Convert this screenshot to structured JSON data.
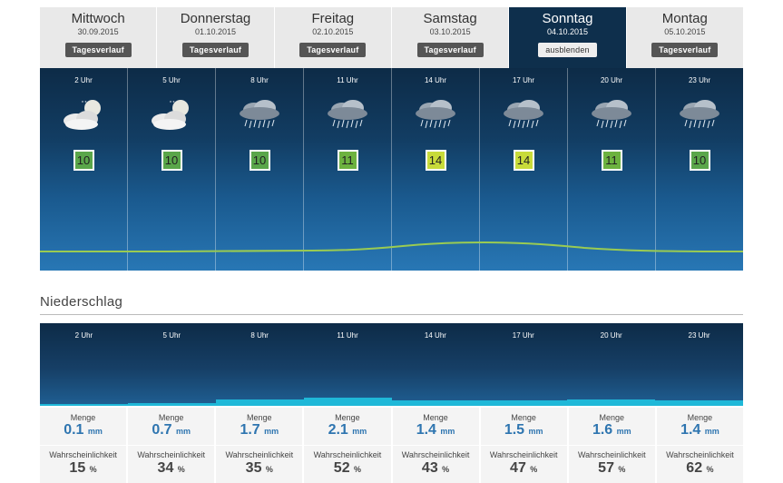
{
  "days": [
    {
      "name": "Mittwoch",
      "date": "30.09.2015",
      "button": "Tagesverlauf",
      "active": false
    },
    {
      "name": "Donnerstag",
      "date": "01.10.2015",
      "button": "Tagesverlauf",
      "active": false
    },
    {
      "name": "Freitag",
      "date": "02.10.2015",
      "button": "Tagesverlauf",
      "active": false
    },
    {
      "name": "Samstag",
      "date": "03.10.2015",
      "button": "Tagesverlauf",
      "active": false
    },
    {
      "name": "Sonntag",
      "date": "04.10.2015",
      "button": "ausblenden",
      "active": true
    },
    {
      "name": "Montag",
      "date": "05.10.2015",
      "button": "Tagesverlauf",
      "active": false
    }
  ],
  "forecast": [
    {
      "time": "2 Uhr",
      "icon": "night-cloud-moon-icon",
      "temp": "10",
      "temp_color": "#5aa64a"
    },
    {
      "time": "5 Uhr",
      "icon": "night-cloud-moon-icon",
      "temp": "10",
      "temp_color": "#5aa64a"
    },
    {
      "time": "8 Uhr",
      "icon": "rain-cloud-icon",
      "temp": "10",
      "temp_color": "#5aa64a"
    },
    {
      "time": "11 Uhr",
      "icon": "rain-cloud-icon",
      "temp": "11",
      "temp_color": "#6db23f"
    },
    {
      "time": "14 Uhr",
      "icon": "rain-cloud-icon",
      "temp": "14",
      "temp_color": "#c8db3a"
    },
    {
      "time": "17 Uhr",
      "icon": "rain-cloud-icon",
      "temp": "14",
      "temp_color": "#c8db3a"
    },
    {
      "time": "20 Uhr",
      "icon": "rain-cloud-icon",
      "temp": "11",
      "temp_color": "#6db23f"
    },
    {
      "time": "23 Uhr",
      "icon": "rain-cloud-icon",
      "temp": "10",
      "temp_color": "#5aa64a"
    }
  ],
  "niederschlag": {
    "title": "Niederschlag",
    "menge_label": "Menge",
    "wk_label": "Wahrscheinlichkeit",
    "unit": "mm",
    "pct_unit": "%",
    "items": [
      {
        "time": "2 Uhr",
        "menge": "0.1",
        "wk": "15"
      },
      {
        "time": "5 Uhr",
        "menge": "0.7",
        "wk": "34"
      },
      {
        "time": "8 Uhr",
        "menge": "1.7",
        "wk": "35"
      },
      {
        "time": "11 Uhr",
        "menge": "2.1",
        "wk": "52"
      },
      {
        "time": "14 Uhr",
        "menge": "1.4",
        "wk": "43"
      },
      {
        "time": "17 Uhr",
        "menge": "1.5",
        "wk": "47"
      },
      {
        "time": "20 Uhr",
        "menge": "1.6",
        "wk": "57"
      },
      {
        "time": "23 Uhr",
        "menge": "1.4",
        "wk": "62"
      }
    ]
  },
  "colors": {
    "accent_blue": "#2e75b0",
    "panel_dark": "#0e2f4c",
    "rain_bar": "#1fb8d8",
    "temp_line": "#9acb52"
  }
}
